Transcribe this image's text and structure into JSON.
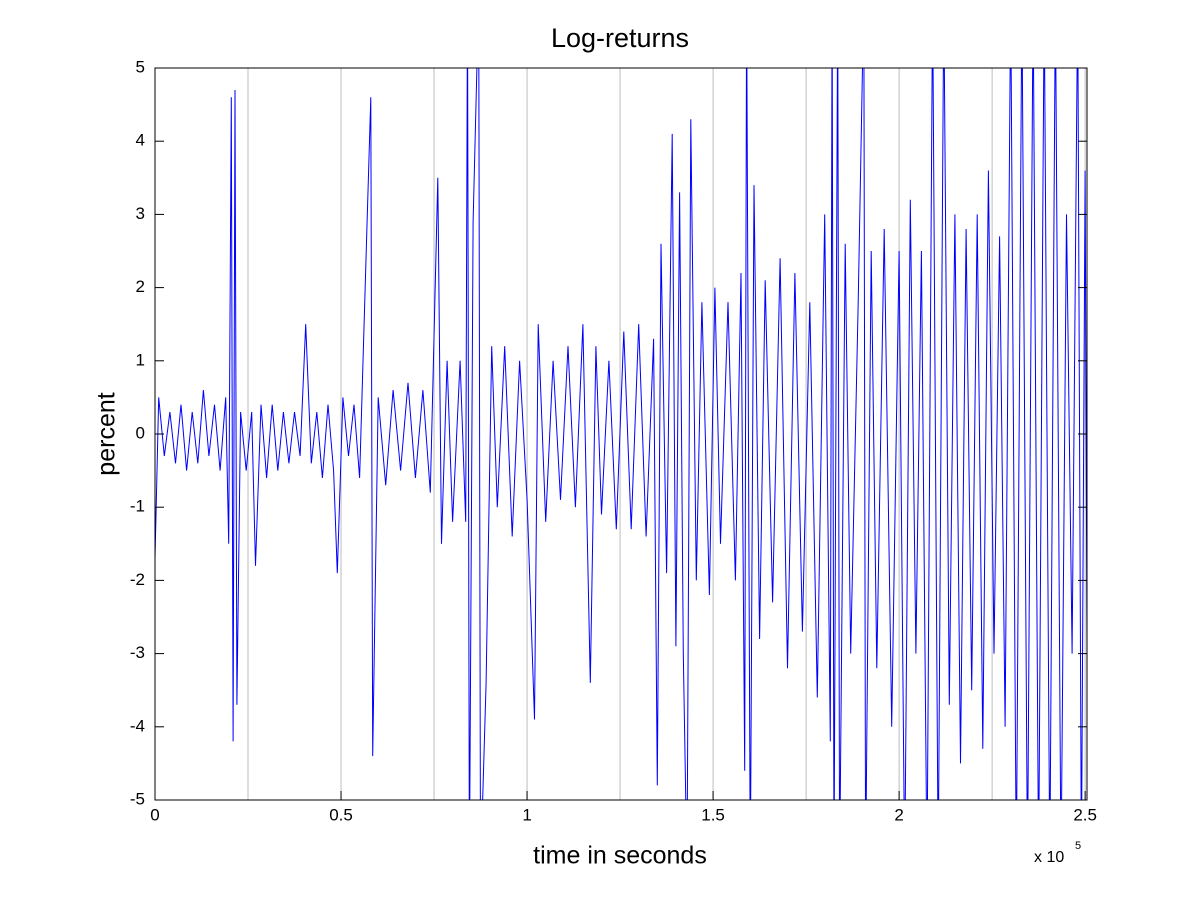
{
  "chart_data": {
    "type": "line",
    "title": "Log-returns",
    "xlabel": "time in seconds",
    "ylabel": "percent",
    "x_multiplier": "x 10",
    "x_exponent": "5",
    "xlim": [
      0,
      250500
    ],
    "ylim": [
      -5,
      5
    ],
    "xticks": [
      0,
      {
        "value": 50000,
        "label": "0.5"
      },
      {
        "value": 100000,
        "label": "1"
      },
      {
        "value": 150000,
        "label": "1.5"
      },
      {
        "value": 200000,
        "label": "2"
      },
      {
        "value": 250000,
        "label": "2.5"
      }
    ],
    "yticks": [
      -5,
      -4,
      -3,
      -2,
      -1,
      0,
      1,
      2,
      3,
      4,
      5
    ],
    "xgrid": [
      25000,
      50000,
      75000,
      100000,
      125000,
      150000,
      175000,
      200000,
      225000,
      250000
    ],
    "grid_color": "#bdbdbd",
    "x": [
      0,
      1000,
      2500,
      4000,
      5500,
      7000,
      8500,
      10000,
      11500,
      13000,
      14500,
      16000,
      17500,
      19000,
      19800,
      20500,
      21000,
      21500,
      22000,
      23000,
      24500,
      26000,
      27000,
      28500,
      30000,
      31500,
      33000,
      34500,
      36000,
      37500,
      39000,
      40500,
      42000,
      43500,
      45000,
      46500,
      48000,
      49000,
      50500,
      52000,
      53500,
      55000,
      57000,
      58000,
      58500,
      60000,
      62000,
      64000,
      66000,
      68000,
      70000,
      72000,
      74000,
      76000,
      77000,
      78500,
      80000,
      82000,
      83500,
      84000,
      84500,
      85500,
      87000,
      87500,
      89000,
      90500,
      92000,
      94000,
      96000,
      98000,
      100000,
      102000,
      103000,
      105000,
      107000,
      109000,
      111000,
      113000,
      115000,
      117000,
      118500,
      120000,
      122000,
      124000,
      126000,
      128000,
      130000,
      132000,
      134000,
      135000,
      136000,
      137500,
      139000,
      140000,
      141000,
      142000,
      143000,
      144000,
      145500,
      147000,
      149000,
      150500,
      152000,
      154000,
      156000,
      157500,
      158500,
      159000,
      160000,
      161000,
      162500,
      164000,
      166000,
      168000,
      170000,
      172000,
      174000,
      176000,
      178000,
      180000,
      181500,
      182000,
      182500,
      183500,
      184000,
      185500,
      187000,
      189000,
      190500,
      191000,
      192500,
      194000,
      196000,
      198000,
      200000,
      201500,
      203000,
      204500,
      206000,
      207500,
      209000,
      210500,
      212000,
      213500,
      215000,
      216500,
      218000,
      219500,
      221000,
      222500,
      224000,
      225500,
      227000,
      228500,
      230000,
      231500,
      233000,
      234500,
      236000,
      237500,
      239000,
      240500,
      242000,
      243500,
      245000,
      246500,
      248000,
      249000,
      250000,
      250500
    ],
    "series": [
      {
        "name": "log-returns",
        "color": "#0000ff",
        "values": [
          -1.7,
          0.5,
          -0.3,
          0.3,
          -0.4,
          0.4,
          -0.5,
          0.3,
          -0.4,
          0.6,
          -0.3,
          0.4,
          -0.5,
          0.5,
          -1.5,
          4.6,
          -4.2,
          4.7,
          -3.7,
          0.3,
          -0.5,
          0.3,
          -1.8,
          0.4,
          -0.6,
          0.4,
          -0.5,
          0.3,
          -0.4,
          0.3,
          -0.3,
          1.5,
          -0.4,
          0.3,
          -0.6,
          0.4,
          -0.5,
          -1.9,
          0.5,
          -0.3,
          0.4,
          -0.6,
          2.9,
          4.6,
          -4.4,
          0.5,
          -0.7,
          0.6,
          -0.5,
          0.7,
          -0.6,
          0.6,
          -0.8,
          3.5,
          -1.5,
          1.0,
          -1.2,
          1.0,
          -1.2,
          6,
          -6,
          2.9,
          6,
          -6,
          -3.4,
          1.2,
          -1.0,
          1.2,
          -1.4,
          1.0,
          -0.9,
          -3.9,
          1.5,
          -1.2,
          1.0,
          -0.9,
          1.2,
          -1.0,
          1.5,
          -3.4,
          1.2,
          -1.1,
          1.0,
          -1.3,
          1.4,
          -1.3,
          1.5,
          -1.4,
          1.3,
          -4.8,
          2.6,
          -1.9,
          4.1,
          -2.9,
          3.3,
          -3.0,
          -6,
          4.3,
          -2.0,
          1.8,
          -2.2,
          2.0,
          -1.5,
          1.8,
          -2.0,
          2.2,
          -4.6,
          6,
          -6,
          3.4,
          -2.8,
          2.1,
          -2.3,
          2.4,
          -3.2,
          2.2,
          -2.7,
          1.8,
          -3.6,
          3.0,
          -4.2,
          6,
          -6,
          6,
          -6,
          2.6,
          -3.0,
          1.8,
          6,
          -6,
          2.5,
          -3.2,
          2.8,
          -4.0,
          2.5,
          -6,
          3.2,
          -3.0,
          2.5,
          -6,
          6,
          -6,
          6,
          -3.7,
          3.0,
          -4.5,
          2.8,
          -3.5,
          3.0,
          -4.3,
          3.6,
          -3.0,
          2.7,
          -4.0,
          6,
          -6,
          6,
          -6,
          6,
          -6,
          6,
          -6,
          6,
          -6,
          3.0,
          -3.0,
          6,
          -6,
          3.6,
          -2.9
        ]
      }
    ]
  }
}
